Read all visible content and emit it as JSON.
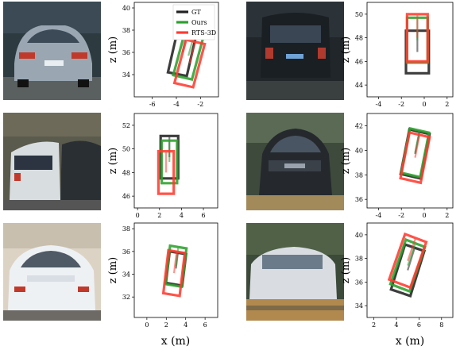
{
  "colors": {
    "gt": "#222222",
    "ours": "#2ca02c",
    "rts": "#ff3b30"
  },
  "legend": [
    "GT",
    "Ours",
    "RTS-3D"
  ],
  "shared_xlabel": "x (m)",
  "chart_data": [
    {
      "type": "scatter",
      "title": "",
      "xlabel": "",
      "ylabel": "z (m)",
      "xlim": [
        -7.5,
        -0.5
      ],
      "ylim": [
        32,
        40.5
      ],
      "xticks": [
        -6,
        -4,
        -2
      ],
      "yticks": [
        34,
        36,
        38,
        40
      ],
      "legend": {
        "placement": "top-right",
        "entries": [
          "GT",
          "Ours",
          "RTS-3D"
        ]
      },
      "series": [
        {
          "name": "GT",
          "center": [
            -3.5,
            36.0
          ],
          "heading_deg": 12,
          "width": 1.6,
          "length": 4.0
        },
        {
          "name": "Ours",
          "center": [
            -3.0,
            35.7
          ],
          "heading_deg": 14,
          "width": 1.6,
          "length": 4.0
        },
        {
          "name": "RTS-3D",
          "center": [
            -2.9,
            35.0
          ],
          "heading_deg": 14,
          "width": 1.6,
          "length": 4.0
        }
      ]
    },
    {
      "type": "scatter",
      "title": "",
      "xlabel": "",
      "ylabel": "z (m)",
      "xlim": [
        -5,
        2.5
      ],
      "ylim": [
        43,
        51
      ],
      "xticks": [
        -4,
        -2,
        0,
        2
      ],
      "yticks": [
        44,
        46,
        48,
        50
      ],
      "series": [
        {
          "name": "GT",
          "center": [
            -0.6,
            46.8
          ],
          "heading_deg": 0,
          "width": 2.0,
          "length": 3.6
        },
        {
          "name": "Ours",
          "center": [
            -0.6,
            47.8
          ],
          "heading_deg": 0,
          "width": 1.8,
          "length": 3.8
        },
        {
          "name": "RTS-3D",
          "center": [
            -0.6,
            48.0
          ],
          "heading_deg": 0,
          "width": 1.8,
          "length": 4.0
        }
      ]
    },
    {
      "type": "scatter",
      "title": "",
      "xlabel": "",
      "ylabel": "z (m)",
      "xlim": [
        -0.3,
        7.3
      ],
      "ylim": [
        45,
        53
      ],
      "xticks": [
        0,
        2,
        4,
        6
      ],
      "yticks": [
        46,
        48,
        50,
        52
      ],
      "series": [
        {
          "name": "GT",
          "center": [
            2.9,
            49.3
          ],
          "heading_deg": 0,
          "width": 1.6,
          "length": 3.6
        },
        {
          "name": "Ours",
          "center": [
            2.9,
            48.9
          ],
          "heading_deg": 0,
          "width": 1.4,
          "length": 3.6
        },
        {
          "name": "RTS-3D",
          "center": [
            2.6,
            48.0
          ],
          "heading_deg": 0,
          "width": 1.4,
          "length": 3.6
        }
      ]
    },
    {
      "type": "scatter",
      "title": "",
      "xlabel": "",
      "ylabel": "z (m)",
      "xlim": [
        -5,
        2.5
      ],
      "ylim": [
        35.3,
        43
      ],
      "xticks": [
        -4,
        -2,
        0,
        2
      ],
      "yticks": [
        36,
        38,
        40,
        42
      ],
      "series": [
        {
          "name": "GT",
          "center": [
            -0.8,
            39.7
          ],
          "heading_deg": 12,
          "width": 1.8,
          "length": 3.7
        },
        {
          "name": "Ours",
          "center": [
            -0.8,
            39.8
          ],
          "heading_deg": 12,
          "width": 1.7,
          "length": 3.7
        },
        {
          "name": "RTS-3D",
          "center": [
            -0.8,
            39.4
          ],
          "heading_deg": 12,
          "width": 1.8,
          "length": 3.8
        }
      ]
    },
    {
      "type": "scatter",
      "title": "",
      "xlabel": "",
      "ylabel": "z (m)",
      "xlim": [
        -1.3,
        7.3
      ],
      "ylim": [
        30.2,
        38.5
      ],
      "xticks": [
        0,
        2,
        4,
        6
      ],
      "yticks": [
        32,
        34,
        36,
        38
      ],
      "series": [
        {
          "name": "GT",
          "center": [
            3.0,
            34.5
          ],
          "heading_deg": 8,
          "width": 1.7,
          "length": 2.8
        },
        {
          "name": "Ours",
          "center": [
            3.0,
            34.7
          ],
          "heading_deg": 8,
          "width": 1.7,
          "length": 3.4
        },
        {
          "name": "RTS-3D",
          "center": [
            2.8,
            34.1
          ],
          "heading_deg": 8,
          "width": 1.7,
          "length": 3.8
        }
      ]
    },
    {
      "type": "scatter",
      "title": "",
      "xlabel": "",
      "ylabel": "z (m)",
      "xlim": [
        1.4,
        9
      ],
      "ylim": [
        33,
        41
      ],
      "xticks": [
        2,
        4,
        6,
        8
      ],
      "yticks": [
        34,
        36,
        38,
        40
      ],
      "series": [
        {
          "name": "GT",
          "center": [
            5.0,
            37.0
          ],
          "heading_deg": 18,
          "width": 1.8,
          "length": 4.0
        },
        {
          "name": "Ours",
          "center": [
            5.0,
            37.4
          ],
          "heading_deg": 20,
          "width": 1.8,
          "length": 4.0
        },
        {
          "name": "RTS-3D",
          "center": [
            5.0,
            37.8
          ],
          "heading_deg": 20,
          "width": 2.0,
          "length": 4.1
        }
      ]
    }
  ]
}
